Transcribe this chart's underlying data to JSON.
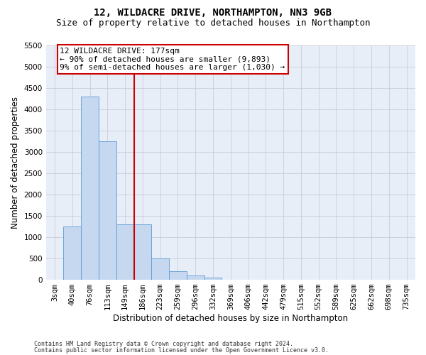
{
  "title_line1": "12, WILDACRE DRIVE, NORTHAMPTON, NN3 9GB",
  "title_line2": "Size of property relative to detached houses in Northampton",
  "xlabel": "Distribution of detached houses by size in Northampton",
  "ylabel": "Number of detached properties",
  "footer_line1": "Contains HM Land Registry data © Crown copyright and database right 2024.",
  "footer_line2": "Contains public sector information licensed under the Open Government Licence v3.0.",
  "bar_labels": [
    "3sqm",
    "40sqm",
    "76sqm",
    "113sqm",
    "149sqm",
    "186sqm",
    "223sqm",
    "259sqm",
    "296sqm",
    "332sqm",
    "369sqm",
    "406sqm",
    "442sqm",
    "479sqm",
    "515sqm",
    "552sqm",
    "589sqm",
    "625sqm",
    "662sqm",
    "698sqm",
    "735sqm"
  ],
  "bar_values": [
    0,
    1250,
    4300,
    3250,
    1300,
    1300,
    500,
    200,
    100,
    50,
    0,
    0,
    0,
    0,
    0,
    0,
    0,
    0,
    0,
    0,
    0
  ],
  "bar_color": "#c5d8f0",
  "bar_edge_color": "#5b9bd5",
  "vline_position": 4.5,
  "annotation_line1": "12 WILDACRE DRIVE: 177sqm",
  "annotation_line2": "← 90% of detached houses are smaller (9,893)",
  "annotation_line3": "9% of semi-detached houses are larger (1,030) →",
  "annotation_box_color": "#ffffff",
  "annotation_box_edge_color": "#cc0000",
  "vline_color": "#cc0000",
  "ylim_max": 5500,
  "yticks": [
    0,
    500,
    1000,
    1500,
    2000,
    2500,
    3000,
    3500,
    4000,
    4500,
    5000,
    5500
  ],
  "bg_color": "#ffffff",
  "plot_bg_color": "#e8eef8",
  "grid_color": "#c8ccd8",
  "title_fontsize": 10,
  "subtitle_fontsize": 9,
  "axis_label_fontsize": 8.5,
  "tick_fontsize": 7.5,
  "annotation_fontsize": 8,
  "footer_fontsize": 6
}
